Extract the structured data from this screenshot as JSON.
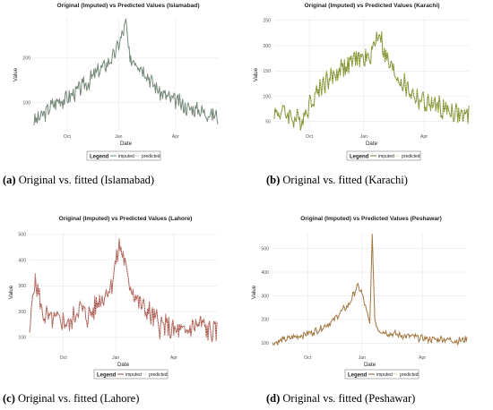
{
  "captions": [
    {
      "tag": "(a)",
      "text": " Original vs. fitted (Islamabad)"
    },
    {
      "tag": "(b)",
      "text": " Original vs. fitted (Karachi)"
    },
    {
      "tag": "(c)",
      "text": " Original vs. fitted (Lahore)"
    },
    {
      "tag": "(d)",
      "text": " Original vs. fitted (Peshawar)"
    }
  ],
  "chart_data": [
    {
      "type": "line",
      "title": "Original (Imputed) vs Predicted Values (Islamabad)",
      "xlabel": "Date",
      "ylabel": "Value",
      "xticks": [
        "Oct",
        "Jan",
        "Apr"
      ],
      "yticks": [
        100,
        200
      ],
      "ylim": [
        35,
        290
      ],
      "grid": true,
      "legend": {
        "title": "Legend",
        "entries": [
          "imputed",
          "predicted"
        ],
        "position": "bottom"
      },
      "colors": {
        "imputed": "#4d7f6f",
        "predicted": "#9a8a7a"
      },
      "anchors": [
        [
          0,
          55
        ],
        [
          10,
          70
        ],
        [
          20,
          90
        ],
        [
          30,
          105
        ],
        [
          40,
          110
        ],
        [
          50,
          120
        ],
        [
          60,
          135
        ],
        [
          70,
          150
        ],
        [
          80,
          170
        ],
        [
          90,
          185
        ],
        [
          100,
          205
        ],
        [
          110,
          250
        ],
        [
          115,
          280
        ],
        [
          120,
          185
        ],
        [
          125,
          200
        ],
        [
          130,
          190
        ],
        [
          140,
          170
        ],
        [
          150,
          140
        ],
        [
          160,
          120
        ],
        [
          170,
          110
        ],
        [
          180,
          100
        ],
        [
          190,
          90
        ],
        [
          200,
          85
        ],
        [
          210,
          80
        ],
        [
          220,
          75
        ],
        [
          230,
          70
        ]
      ],
      "amplitude": 22
    },
    {
      "type": "line",
      "title": "Original (Imputed) vs Predicted Values (Karachi)",
      "xlabel": "Date",
      "ylabel": "Value",
      "xticks": [
        "Oct",
        "Jan",
        "Apr"
      ],
      "yticks": [
        50,
        100,
        150,
        200,
        250
      ],
      "ylim": [
        30,
        255
      ],
      "grid": true,
      "legend": {
        "title": "Legend",
        "entries": [
          "imputed",
          "predicted"
        ],
        "position": "bottom"
      },
      "colors": {
        "imputed": "#5c6e2e",
        "predicted": "#b8c23a"
      },
      "anchors": [
        [
          0,
          65
        ],
        [
          10,
          70
        ],
        [
          20,
          60
        ],
        [
          30,
          50
        ],
        [
          40,
          80
        ],
        [
          50,
          110
        ],
        [
          60,
          130
        ],
        [
          70,
          140
        ],
        [
          80,
          160
        ],
        [
          90,
          165
        ],
        [
          100,
          175
        ],
        [
          110,
          170
        ],
        [
          120,
          210
        ],
        [
          125,
          230
        ],
        [
          130,
          180
        ],
        [
          140,
          150
        ],
        [
          150,
          130
        ],
        [
          160,
          110
        ],
        [
          170,
          95
        ],
        [
          180,
          85
        ],
        [
          190,
          80
        ],
        [
          200,
          75
        ],
        [
          210,
          70
        ],
        [
          220,
          65
        ],
        [
          230,
          55
        ]
      ],
      "amplitude": 26
    },
    {
      "type": "line",
      "title": "Original (Imputed) vs Predicted Values (Lahore)",
      "xlabel": "Date",
      "ylabel": "Value",
      "xticks": [
        "Oct",
        "Jan",
        "Apr"
      ],
      "yticks": [
        100,
        200,
        300,
        400,
        500
      ],
      "ylim": [
        40,
        510
      ],
      "grid": true,
      "legend": {
        "title": "Legend",
        "entries": [
          "imputed",
          "predicted"
        ],
        "position": "bottom"
      },
      "colors": {
        "imputed": "#8a3a3a",
        "predicted": "#e0a08a"
      },
      "anchors": [
        [
          0,
          100
        ],
        [
          5,
          320
        ],
        [
          10,
          280
        ],
        [
          15,
          200
        ],
        [
          20,
          180
        ],
        [
          30,
          160
        ],
        [
          40,
          170
        ],
        [
          50,
          150
        ],
        [
          60,
          220
        ],
        [
          70,
          180
        ],
        [
          80,
          210
        ],
        [
          90,
          260
        ],
        [
          100,
          300
        ],
        [
          105,
          380
        ],
        [
          110,
          450
        ],
        [
          115,
          420
        ],
        [
          120,
          330
        ],
        [
          125,
          300
        ],
        [
          130,
          260
        ],
        [
          140,
          210
        ],
        [
          150,
          180
        ],
        [
          160,
          150
        ],
        [
          170,
          130
        ],
        [
          180,
          120
        ],
        [
          190,
          110
        ],
        [
          200,
          140
        ],
        [
          210,
          150
        ],
        [
          220,
          130
        ],
        [
          230,
          110
        ]
      ],
      "amplitude": 60
    },
    {
      "type": "line",
      "title": "Original (Imputed) vs Predicted Values (Peshawar)",
      "xlabel": "Date",
      "ylabel": "Value",
      "xticks": [
        "Oct",
        "Jan",
        "Apr"
      ],
      "yticks": [
        100,
        200,
        300,
        400,
        500
      ],
      "ylim": [
        60,
        570
      ],
      "grid": true,
      "legend": {
        "title": "Legend",
        "entries": [
          "imputed",
          "predicted"
        ],
        "position": "bottom"
      },
      "colors": {
        "imputed": "#7a5020",
        "predicted": "#c99a55"
      },
      "anchors": [
        [
          0,
          100
        ],
        [
          10,
          110
        ],
        [
          20,
          120
        ],
        [
          30,
          130
        ],
        [
          40,
          140
        ],
        [
          50,
          150
        ],
        [
          60,
          170
        ],
        [
          70,
          190
        ],
        [
          80,
          230
        ],
        [
          90,
          260
        ],
        [
          95,
          300
        ],
        [
          100,
          340
        ],
        [
          105,
          320
        ],
        [
          110,
          250
        ],
        [
          115,
          180
        ],
        [
          118,
          550
        ],
        [
          121,
          200
        ],
        [
          125,
          160
        ],
        [
          130,
          150
        ],
        [
          140,
          140
        ],
        [
          150,
          135
        ],
        [
          160,
          130
        ],
        [
          170,
          125
        ],
        [
          180,
          120
        ],
        [
          190,
          115
        ],
        [
          200,
          120
        ],
        [
          210,
          115
        ],
        [
          220,
          110
        ],
        [
          230,
          115
        ]
      ],
      "amplitude": 18
    }
  ]
}
